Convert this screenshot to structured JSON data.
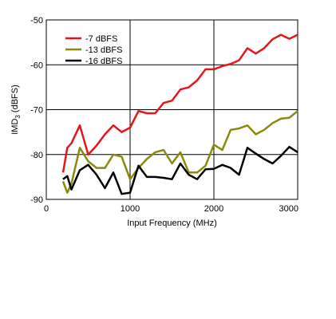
{
  "chart_data": {
    "type": "line",
    "title": "",
    "xlabel": "Input Frequency (MHz)",
    "ylabel": "IMD3 (dBFS)",
    "ylabel_main": "IMD",
    "ylabel_sub": "3",
    "ylabel_rest": " (dBFS)",
    "xlim": [
      0,
      3000
    ],
    "ylim": [
      -90,
      -50
    ],
    "xticks": [
      0,
      1000,
      2000,
      3000
    ],
    "yticks": [
      -90,
      -80,
      -70,
      -60,
      -50
    ],
    "grid": true,
    "legend_position": "top-left",
    "series": [
      {
        "name": "-7 dBFS",
        "color": "#e8141a",
        "x": [
          200,
          250,
          300,
          400,
          500,
          600,
          700,
          800,
          900,
          1000,
          1100,
          1200,
          1300,
          1400,
          1500,
          1600,
          1700,
          1800,
          1900,
          2000,
          2100,
          2200,
          2300,
          2400,
          2500,
          2600,
          2700,
          2800,
          2900,
          3000
        ],
        "y": [
          -84,
          -78.5,
          -77.5,
          -73.5,
          -80,
          -78,
          -75.5,
          -73.5,
          -75,
          -74,
          -70.3,
          -70.8,
          -70.8,
          -68.5,
          -68,
          -65.5,
          -65,
          -63.5,
          -61,
          -61,
          -60.3,
          -59.8,
          -59,
          -56.3,
          -57.5,
          -56.3,
          -54.3,
          -53.3,
          -54.2,
          -53.3
        ]
      },
      {
        "name": "-13 dBFS",
        "color": "#8a8a0a",
        "x": [
          200,
          250,
          300,
          400,
          500,
          600,
          700,
          800,
          900,
          1000,
          1100,
          1200,
          1300,
          1400,
          1500,
          1600,
          1700,
          1800,
          1900,
          2000,
          2100,
          2200,
          2300,
          2400,
          2500,
          2600,
          2700,
          2800,
          2900,
          3000
        ],
        "y": [
          -86,
          -88.5,
          -86.5,
          -78.5,
          -81.5,
          -83,
          -83,
          -80,
          -80.5,
          -85.5,
          -83,
          -81,
          -79.5,
          -79,
          -82,
          -79.5,
          -84,
          -84,
          -82.5,
          -77.8,
          -79,
          -74.5,
          -74.2,
          -73.5,
          -75.5,
          -74.5,
          -73,
          -72,
          -71.8,
          -70.3
        ]
      },
      {
        "name": "-16 dBFS",
        "color": "#000000",
        "x": [
          200,
          250,
          300,
          400,
          500,
          600,
          700,
          800,
          900,
          1000,
          1100,
          1200,
          1300,
          1400,
          1500,
          1600,
          1700,
          1800,
          1900,
          2000,
          2100,
          2200,
          2300,
          2400,
          2500,
          2600,
          2700,
          2800,
          2900,
          3000
        ],
        "y": [
          -85.5,
          -84.8,
          -87.8,
          -83.5,
          -82.3,
          -84.5,
          -87.5,
          -84,
          -88.8,
          -88.5,
          -82.5,
          -85,
          -85,
          -85.2,
          -85.5,
          -82,
          -84.5,
          -85.5,
          -83.3,
          -83.2,
          -82.3,
          -83,
          -84.5,
          -78.5,
          -79.8,
          -81,
          -82,
          -80.3,
          -78.3,
          -79.5
        ]
      }
    ]
  }
}
